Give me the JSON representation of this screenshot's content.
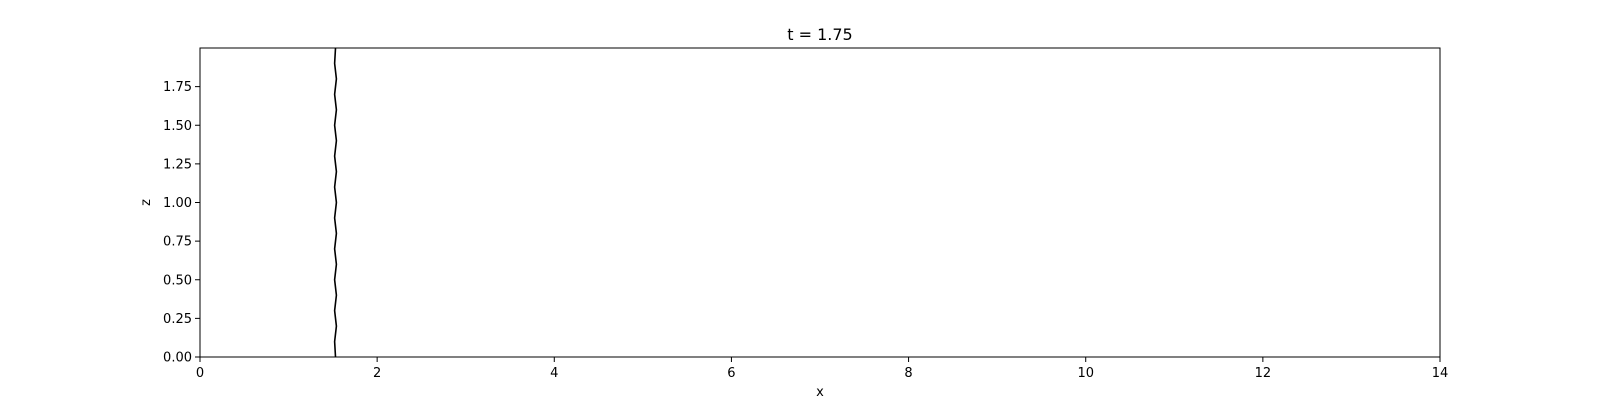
{
  "chart_data": {
    "type": "line",
    "title": "t = 1.75",
    "xlabel": "x",
    "ylabel": "z",
    "xlim": [
      0,
      14
    ],
    "ylim": [
      0,
      2.0
    ],
    "x_ticks": [
      0,
      2,
      4,
      6,
      8,
      10,
      12,
      14
    ],
    "x_tick_labels": [
      "0",
      "2",
      "4",
      "6",
      "8",
      "10",
      "12",
      "14"
    ],
    "y_ticks": [
      0,
      0.25,
      0.5,
      0.75,
      1.0,
      1.25,
      1.5,
      1.75
    ],
    "y_tick_labels": [
      "0.00",
      "0.25",
      "0.50",
      "0.75",
      "1.00",
      "1.25",
      "1.50",
      "1.75"
    ],
    "grid": false,
    "line_color": "#000000",
    "series": [
      {
        "x": [
          1.53,
          1.52,
          1.54,
          1.52,
          1.54,
          1.52,
          1.54,
          1.52,
          1.54,
          1.52,
          1.54,
          1.52,
          1.54,
          1.52,
          1.54,
          1.52,
          1.54,
          1.52,
          1.54,
          1.52,
          1.53
        ],
        "y": [
          0.0,
          0.1,
          0.2,
          0.3,
          0.4,
          0.5,
          0.6,
          0.7,
          0.8,
          0.9,
          1.0,
          1.1,
          1.2,
          1.3,
          1.4,
          1.5,
          1.6,
          1.7,
          1.8,
          1.9,
          2.0
        ]
      }
    ]
  }
}
